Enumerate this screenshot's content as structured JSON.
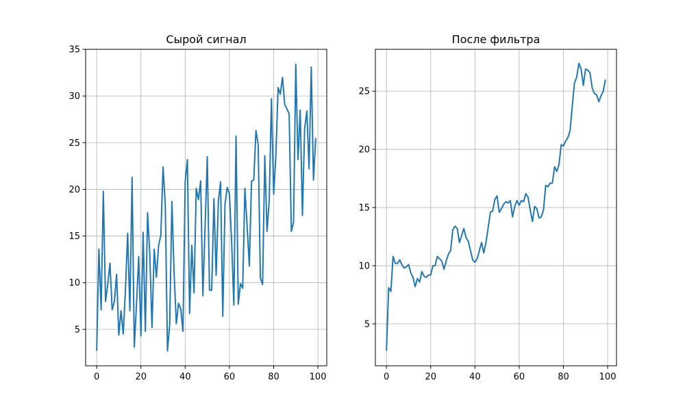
{
  "chart_data": [
    {
      "type": "line",
      "title": "Сырой сигнал",
      "xlabel": "",
      "ylabel": "",
      "xlim": [
        -5,
        104
      ],
      "ylim": [
        1.1,
        35
      ],
      "xticks": [
        0,
        20,
        40,
        60,
        80,
        100
      ],
      "yticks": [
        5,
        10,
        15,
        20,
        25,
        30,
        35
      ],
      "grid": true,
      "series": [
        {
          "color": "#1f77b4",
          "x": [
            0,
            1,
            2,
            3,
            4,
            5,
            6,
            7,
            8,
            9,
            10,
            11,
            12,
            13,
            14,
            15,
            16,
            17,
            18,
            19,
            20,
            21,
            22,
            23,
            24,
            25,
            26,
            27,
            28,
            29,
            30,
            31,
            32,
            33,
            34,
            35,
            36,
            37,
            38,
            39,
            40,
            41,
            42,
            43,
            44,
            45,
            46,
            47,
            48,
            49,
            50,
            51,
            52,
            53,
            54,
            55,
            56,
            57,
            58,
            59,
            60,
            61,
            62,
            63,
            64,
            65,
            66,
            67,
            68,
            69,
            70,
            71,
            72,
            73,
            74,
            75,
            76,
            77,
            78,
            79,
            80,
            81,
            82,
            83,
            84,
            85,
            86,
            87,
            88,
            89,
            90,
            91,
            92,
            93,
            94,
            95,
            96,
            97,
            98,
            99
          ],
          "y": [
            2.7,
            13.6,
            7.1,
            19.8,
            8.0,
            9.8,
            12.1,
            7.1,
            8.0,
            10.9,
            4.4,
            7.0,
            4.5,
            9.2,
            15.3,
            7.0,
            21.3,
            3.1,
            7.7,
            12.8,
            4.3,
            15.4,
            4.8,
            17.5,
            13.1,
            5.2,
            13.6,
            10.6,
            14.0,
            15.1,
            22.4,
            18.4,
            2.7,
            5.5,
            18.7,
            11.0,
            5.6,
            7.8,
            7.2,
            4.8,
            20.8,
            23.2,
            6.7,
            14.0,
            8.9,
            20.1,
            18.9,
            20.9,
            8.6,
            16.0,
            23.5,
            9.2,
            9.2,
            19.0,
            10.8,
            18.7,
            20.8,
            6.4,
            18.4,
            20.2,
            19.5,
            14.4,
            7.6,
            25.7,
            7.7,
            9.9,
            9.4,
            20.1,
            16.1,
            11.8,
            20.9,
            21.0,
            26.3,
            24.8,
            10.5,
            9.8,
            23.6,
            15.5,
            18.8,
            29.7,
            19.5,
            23.6,
            30.9,
            30.2,
            32.0,
            29.1,
            28.6,
            28.1,
            15.5,
            16.5,
            33.4,
            23.2,
            28.5,
            17.2,
            26.5,
            28.4,
            22.2,
            33.1,
            21.0,
            25.5
          ]
        }
      ]
    },
    {
      "type": "line",
      "title": "После фильтра",
      "xlabel": "",
      "ylabel": "",
      "xlim": [
        -5,
        104
      ],
      "ylim": [
        1.4,
        28.6
      ],
      "xticks": [
        0,
        20,
        40,
        60,
        80,
        100
      ],
      "yticks": [
        5,
        10,
        15,
        20,
        25
      ],
      "grid": true,
      "series": [
        {
          "color": "#1f77b4",
          "x": [
            0,
            1,
            2,
            3,
            4,
            5,
            6,
            7,
            8,
            9,
            10,
            11,
            12,
            13,
            14,
            15,
            16,
            17,
            18,
            19,
            20,
            21,
            22,
            23,
            24,
            25,
            26,
            27,
            28,
            29,
            30,
            31,
            32,
            33,
            34,
            35,
            36,
            37,
            38,
            39,
            40,
            41,
            42,
            43,
            44,
            45,
            46,
            47,
            48,
            49,
            50,
            51,
            52,
            53,
            54,
            55,
            56,
            57,
            58,
            59,
            60,
            61,
            62,
            63,
            64,
            65,
            66,
            67,
            68,
            69,
            70,
            71,
            72,
            73,
            74,
            75,
            76,
            77,
            78,
            79,
            80,
            81,
            82,
            83,
            84,
            85,
            86,
            87,
            88,
            89,
            90,
            91,
            92,
            93,
            94,
            95,
            96,
            97,
            98,
            99
          ],
          "y": [
            2.7,
            8.1,
            7.8,
            10.8,
            10.2,
            10.2,
            10.5,
            10.1,
            9.8,
            9.9,
            10.1,
            9.4,
            9.0,
            8.2,
            8.9,
            8.6,
            9.5,
            9.1,
            9.0,
            9.2,
            9.2,
            10.0,
            10.0,
            10.8,
            10.6,
            10.4,
            9.7,
            10.4,
            11.0,
            11.3,
            13.1,
            13.4,
            13.2,
            12.0,
            12.6,
            13.2,
            12.4,
            12.1,
            11.3,
            10.5,
            10.3,
            10.6,
            11.3,
            12.0,
            11.1,
            12.0,
            13.3,
            14.6,
            14.7,
            15.7,
            16.0,
            14.6,
            14.9,
            15.3,
            15.5,
            15.4,
            15.6,
            14.2,
            15.1,
            15.6,
            15.2,
            15.6,
            15.5,
            16.2,
            15.9,
            14.8,
            13.8,
            15.1,
            14.9,
            14.1,
            14.2,
            14.8,
            16.9,
            16.8,
            17.1,
            17.1,
            18.5,
            18.1,
            18.7,
            20.4,
            20.3,
            20.7,
            21.0,
            21.6,
            23.7,
            25.7,
            26.2,
            27.4,
            26.9,
            25.5,
            26.9,
            26.8,
            26.6,
            25.3,
            24.8,
            24.7,
            24.1,
            24.6,
            25.0,
            26.0
          ]
        }
      ]
    }
  ]
}
